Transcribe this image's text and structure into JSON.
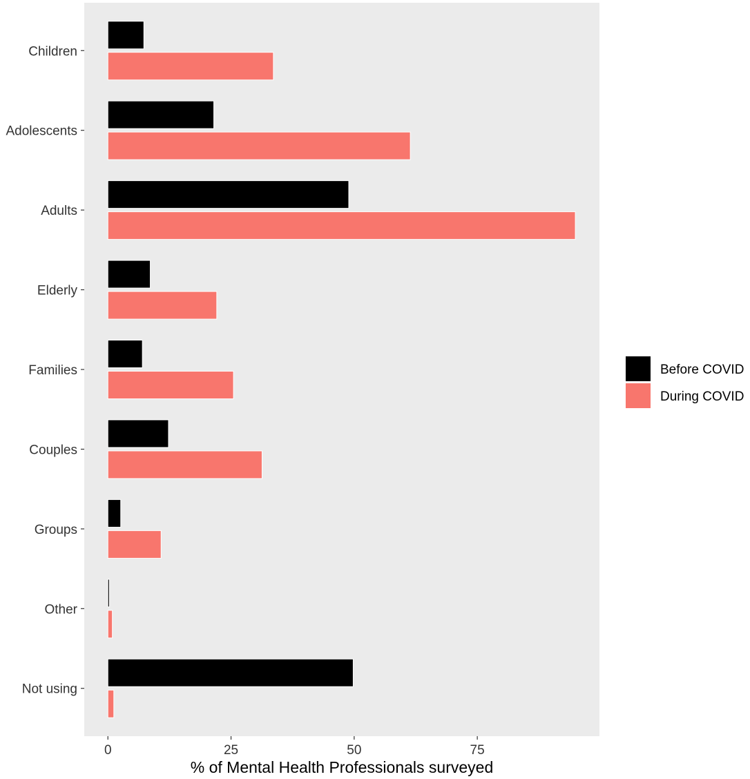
{
  "chart_data": {
    "type": "bar",
    "orientation": "horizontal",
    "categories": [
      "Children",
      "Adolescents",
      "Adults",
      "Elderly",
      "Families",
      "Couples",
      "Groups",
      "Other",
      "Not using"
    ],
    "series": [
      {
        "name": "Before COVID",
        "color": "#000000",
        "values": [
          7.3,
          21.5,
          48.9,
          8.6,
          7.0,
          12.3,
          2.6,
          0.3,
          49.8
        ]
      },
      {
        "name": "During COVID",
        "color": "#F8766D",
        "values": [
          33.6,
          61.4,
          94.9,
          22.1,
          25.5,
          31.3,
          10.8,
          0.9,
          1.2
        ]
      }
    ],
    "title": "",
    "xlabel": "% of Mental Health Professionals surveyed",
    "ylabel": "",
    "xticks": [
      0,
      25,
      50,
      75
    ],
    "xlim": [
      -4.8,
      99.8
    ],
    "grid": false,
    "legend_position": "right",
    "panel_background": "#EBEBEB"
  }
}
